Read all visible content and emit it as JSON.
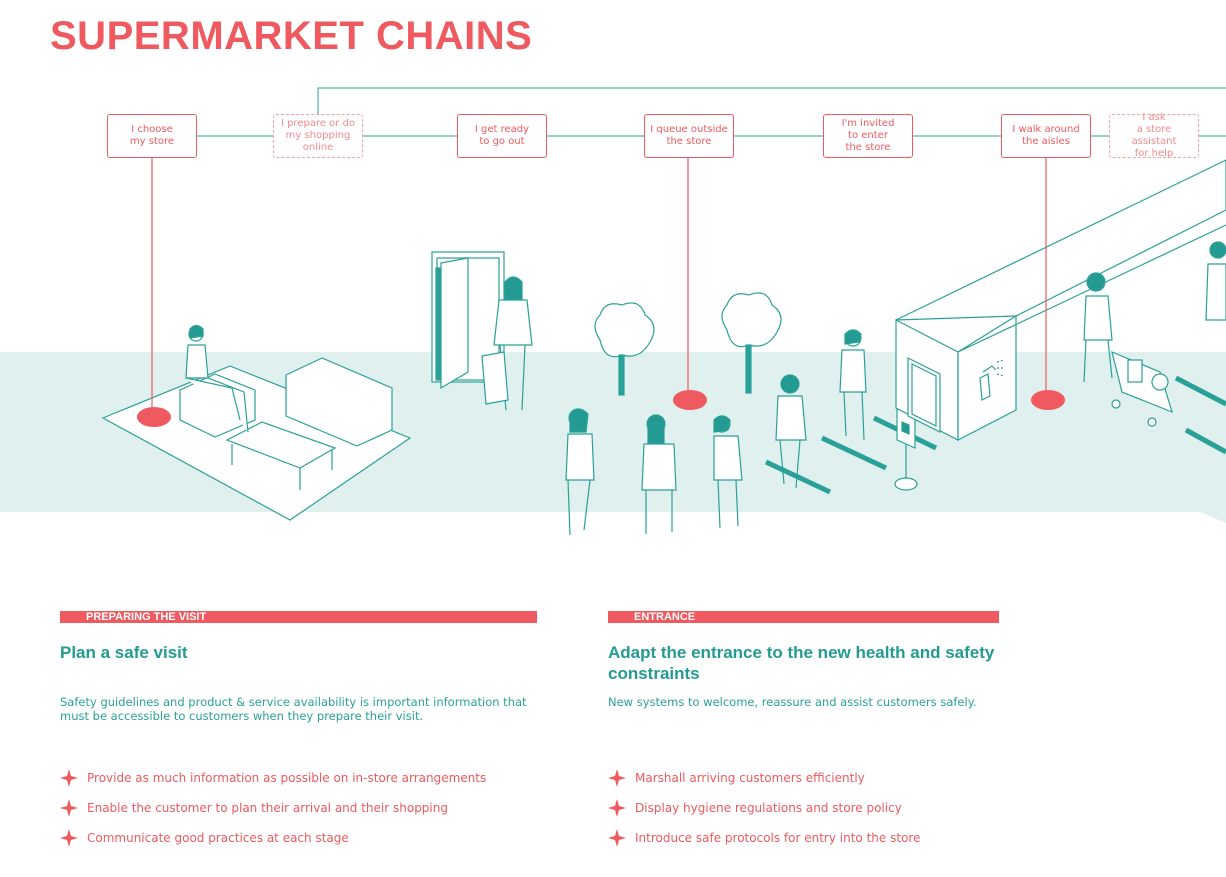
{
  "title": "SUPERMARKET CHAINS",
  "steps": [
    {
      "label": "I choose\nmy store",
      "optional": false
    },
    {
      "label": "I prepare or do\nmy shopping\nonline",
      "optional": true
    },
    {
      "label": "I get ready\nto go out",
      "optional": false
    },
    {
      "label": "I queue outside\nthe store",
      "optional": false
    },
    {
      "label": "I'm invited\nto enter\nthe store",
      "optional": false
    },
    {
      "label": "I walk around\nthe aisles",
      "optional": false
    },
    {
      "label": "I ask\na store assistant\nfor help",
      "optional": true
    }
  ],
  "sections": [
    {
      "tag": "PREPARING THE VISIT",
      "heading": "Plan a safe visit",
      "description": "Safety guidelines and product & service availability is important information that must be accessible to customers when they prepare their visit.",
      "bullets": [
        "Provide as much information as possible on in-store arrangements",
        "Enable the customer to plan their arrival and their shopping",
        "Communicate good practices at each stage"
      ]
    },
    {
      "tag": "ENTRANCE",
      "heading": "Adapt the entrance to the new health and safety constraints",
      "description": "New systems to welcome, reassure and assist customers safely.",
      "bullets": [
        "Marshall arriving customers efficiently",
        "Display hygiene regulations and store policy",
        "Introduce safe protocols for entry into the store"
      ]
    }
  ],
  "colors": {
    "accent": "#ee5a5f",
    "teal": "#2aa198",
    "floor": "#dff0ee"
  },
  "icons": [
    "star-bullet-icon",
    "spray-bottle-icon",
    "stop-hand-icon"
  ]
}
